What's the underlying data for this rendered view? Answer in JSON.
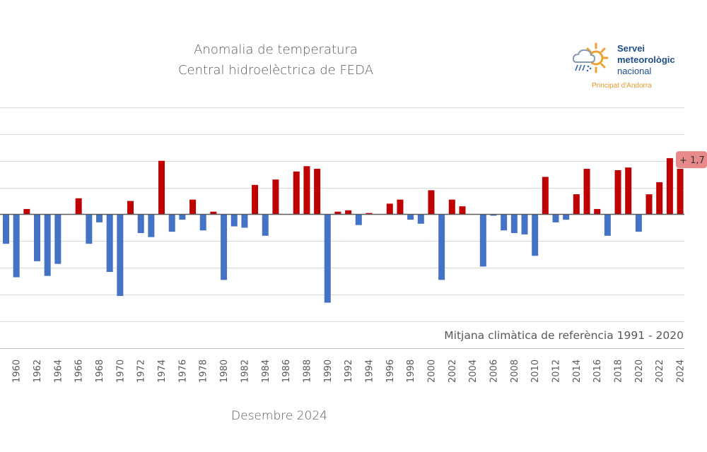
{
  "header": {
    "title_line1": "Anomalia de temperatura",
    "title_line2": "Central hidroelèctrica de FEDA"
  },
  "logo": {
    "line1": "Servei",
    "line2": "meteorològic",
    "line3": "nacional",
    "subline": "Principat d'Andorra",
    "icon": "sun-cloud-rain-icon"
  },
  "footer": {
    "subtitle": "Desembre 2024",
    "reference_note": "Mitjana climàtica de referència 1991 - 2020"
  },
  "colors": {
    "positive": "#c00000",
    "negative": "#4472c4",
    "grid": "#d9d9d9",
    "axis": "#595959",
    "callout_fill": "#e8898a"
  },
  "chart_data": {
    "type": "bar",
    "title": "Anomalia de temperatura - Central hidroelèctrica de FEDA",
    "subtitle": "Desembre 2024",
    "xlabel": "",
    "ylabel": "",
    "ylim": [
      -5,
      4
    ],
    "grid": true,
    "gridline_step": 1,
    "tick_labels_every": 2,
    "annotation": {
      "year": 2024,
      "text": "+ 1,7"
    },
    "categories": [
      1959,
      1960,
      1961,
      1962,
      1963,
      1964,
      1965,
      1966,
      1967,
      1968,
      1969,
      1970,
      1971,
      1972,
      1973,
      1974,
      1975,
      1976,
      1977,
      1978,
      1979,
      1980,
      1981,
      1982,
      1983,
      1984,
      1985,
      1986,
      1987,
      1988,
      1989,
      1990,
      1991,
      1992,
      1993,
      1994,
      1995,
      1996,
      1997,
      1998,
      1999,
      2000,
      2001,
      2002,
      2003,
      2004,
      2005,
      2006,
      2007,
      2008,
      2009,
      2010,
      2011,
      2012,
      2013,
      2014,
      2015,
      2016,
      2017,
      2018,
      2019,
      2020,
      2021,
      2022,
      2023,
      2024
    ],
    "values": [
      -1.1,
      -2.35,
      0.2,
      -1.75,
      -2.3,
      -1.85,
      null,
      0.6,
      -1.1,
      -0.3,
      -2.15,
      -3.05,
      0.5,
      -0.7,
      -0.85,
      2.0,
      -0.65,
      -0.2,
      0.55,
      -0.6,
      0.1,
      -2.45,
      -0.45,
      -0.5,
      1.1,
      -0.8,
      1.3,
      null,
      1.6,
      1.8,
      1.7,
      -3.3,
      0.1,
      0.15,
      -0.4,
      0.05,
      null,
      0.4,
      0.55,
      -0.2,
      -0.35,
      0.9,
      -2.45,
      0.55,
      0.3,
      null,
      -1.95,
      -0.05,
      -0.6,
      -0.7,
      -0.75,
      -1.55,
      1.4,
      -0.3,
      -0.2,
      0.75,
      1.7,
      0.2,
      -0.8,
      1.65,
      1.75,
      -0.65,
      0.75,
      1.2,
      2.1,
      1.7
    ]
  }
}
